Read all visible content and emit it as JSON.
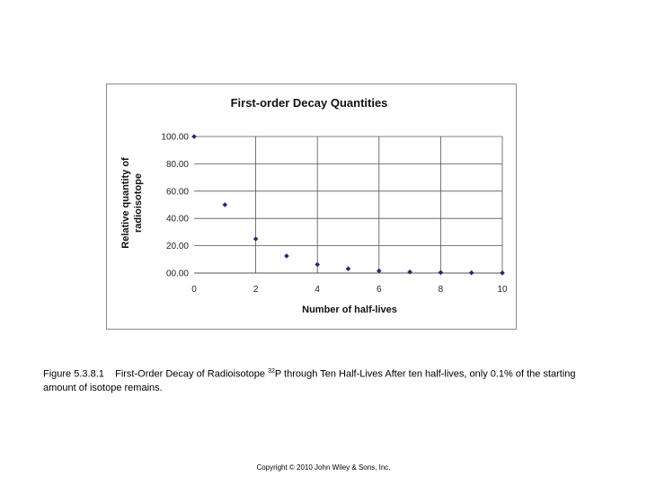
{
  "chart_data": {
    "type": "scatter",
    "title": "First-order Decay Quantities",
    "xlabel": "Number of half-lives",
    "ylabel_lines": [
      "Relative quantity of",
      "radioisotope"
    ],
    "x": [
      0,
      1,
      2,
      3,
      4,
      5,
      6,
      7,
      8,
      9,
      10
    ],
    "y": [
      100,
      50,
      25,
      12.5,
      6.25,
      3.13,
      1.56,
      0.78,
      0.39,
      0.2,
      0.1
    ],
    "xlim": [
      0,
      10
    ],
    "ylim": [
      0,
      100
    ],
    "x_ticks": [
      "0",
      "2",
      "4",
      "6",
      "8",
      "10"
    ],
    "y_ticks": [
      "00.00",
      "20.00",
      "40.00",
      "60.00",
      "80.00",
      "100.00"
    ],
    "grid": true,
    "marker_color": "#1f2a6b",
    "grid_color": "#555555"
  },
  "caption": {
    "label": "Figure 5.3.8.1",
    "text_before_sup": "First-Order Decay of Radioisotope ",
    "sup": "32",
    "text_after_sup": "P through Ten Half-Lives After ten half-lives, only 0.1% of the starting amount of isotope remains."
  },
  "copyright": "Copyright © 2010 John Wiley & Sons, Inc."
}
